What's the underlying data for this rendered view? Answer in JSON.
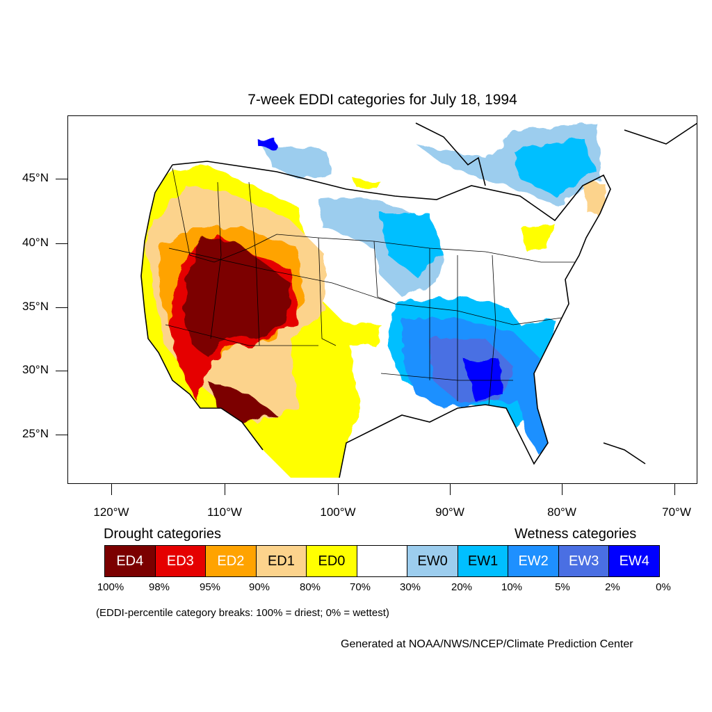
{
  "title": "7-week EDDI categories for July 18, 1994",
  "map": {
    "region": "Contiguous United States",
    "projection": "Lambert conformal",
    "lat_labels": [
      "45°N",
      "40°N",
      "35°N",
      "30°N",
      "25°N"
    ],
    "lon_labels": [
      "120°W",
      "110°W",
      "100°W",
      "90°W",
      "80°W",
      "70°W"
    ]
  },
  "legend": {
    "drought_heading": "Drought categories",
    "wetness_heading": "Wetness categories",
    "categories": [
      {
        "label": "ED4",
        "color": "#7b0000",
        "text_color": "#ffffff"
      },
      {
        "label": "ED3",
        "color": "#e50000",
        "text_color": "#ffffff"
      },
      {
        "label": "ED2",
        "color": "#ffa300",
        "text_color": "#ffffff"
      },
      {
        "label": "ED1",
        "color": "#fcd38c",
        "text_color": "#000000"
      },
      {
        "label": "ED0",
        "color": "#ffff00",
        "text_color": "#000000"
      },
      {
        "label": "",
        "color": "#ffffff",
        "text_color": "#000000"
      },
      {
        "label": "EW0",
        "color": "#9ccdee",
        "text_color": "#000000"
      },
      {
        "label": "EW1",
        "color": "#00bfff",
        "text_color": "#000000"
      },
      {
        "label": "EW2",
        "color": "#1e90ff",
        "text_color": "#ffffff"
      },
      {
        "label": "EW3",
        "color": "#4a6fe3",
        "text_color": "#ffffff"
      },
      {
        "label": "EW4",
        "color": "#0000ff",
        "text_color": "#ffffff"
      }
    ],
    "breaks": [
      "100%",
      "98%",
      "95%",
      "90%",
      "80%",
      "70%",
      "30%",
      "20%",
      "10%",
      "5%",
      "2%",
      "0%"
    ],
    "note": "(EDDI-percentile category breaks: 100% = driest; 0% = wettest)"
  },
  "credit": "Generated at NOAA/NWS/NCEP/Climate Prediction Center"
}
